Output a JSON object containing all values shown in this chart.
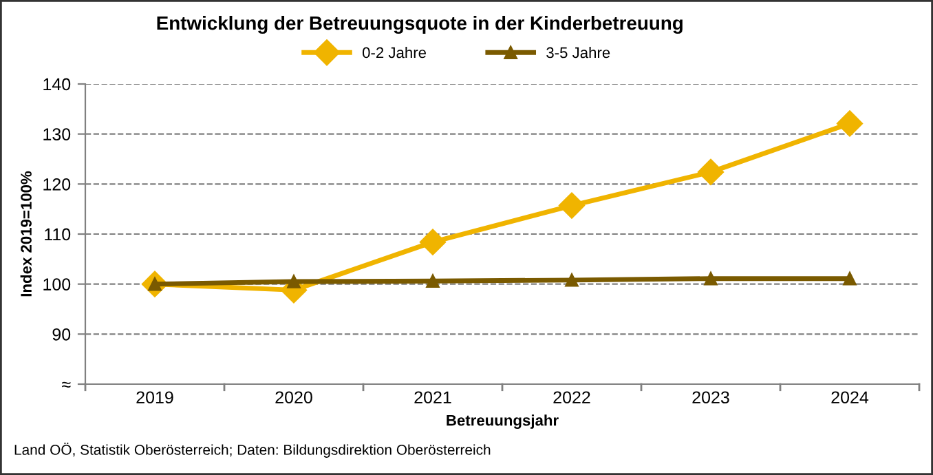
{
  "chart_data": {
    "type": "line",
    "title": "Entwicklung der Betreuungsquote in der Kinderbetreuung",
    "xlabel": "Betreuungsjahr",
    "ylabel": "Index 2019=100%",
    "categories": [
      "2019",
      "2020",
      "2021",
      "2022",
      "2023",
      "2024"
    ],
    "series": [
      {
        "name": "0-2 Jahre",
        "color": "#f0b400",
        "marker": "diamond",
        "values": [
          100,
          98.8,
          108.4,
          115.7,
          122.4,
          132.1
        ]
      },
      {
        "name": "3-5 Jahre",
        "color": "#7a5a00",
        "marker": "triangle",
        "values": [
          100,
          100.5,
          100.6,
          100.8,
          101.1,
          101.1
        ]
      }
    ],
    "ylim": [
      80,
      140
    ],
    "yticks": [
      {
        "value": 80,
        "label": "≈"
      },
      90,
      100,
      110,
      120,
      130,
      140
    ],
    "grid": "y",
    "legend": "top",
    "line_style": "solid",
    "annotations": [
      "Land OÖ, Statistik Oberösterreich; Daten: Bildungsdirektion Oberösterreich"
    ]
  }
}
